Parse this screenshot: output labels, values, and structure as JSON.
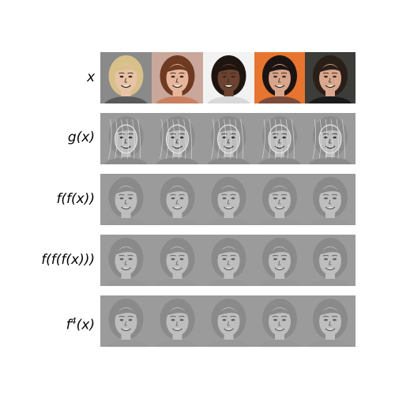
{
  "figure": {
    "rows": [
      {
        "id": "x",
        "label": "x",
        "style": "color"
      },
      {
        "id": "g",
        "label": "g(x)",
        "style": "edge"
      },
      {
        "id": "ff",
        "label": "f(f(x))",
        "style": "gray"
      },
      {
        "id": "fff",
        "label": "f(f(f(x)))",
        "style": "gray"
      },
      {
        "id": "f4",
        "label": "f",
        "sup": "4",
        "suffix": "(x)",
        "style": "gray"
      }
    ],
    "faces": [
      {
        "name": "face-blonde-short-hair",
        "bg": "#8a8a8a",
        "skin": "#e9c3a6",
        "hair": "#d8c08a",
        "cloth": "#5a5a5a"
      },
      {
        "name": "face-brown-bangs",
        "bg": "#c9a79a",
        "skin": "#e6b59a",
        "hair": "#6e3a22",
        "cloth": "#c98060"
      },
      {
        "name": "face-curly-dark-hair",
        "bg": "#f2f2f2",
        "skin": "#6b4330",
        "hair": "#1e1410",
        "cloth": "#d9d9d9"
      },
      {
        "name": "face-dark-wavy-hair",
        "bg": "#e7742f",
        "skin": "#d9a58a",
        "hair": "#1c1412",
        "cloth": "#7a4b3a"
      },
      {
        "name": "face-long-dark-hair",
        "bg": "#3c3c38",
        "skin": "#d9a88e",
        "hair": "#2a1e18",
        "cloth": "#1a1a1a"
      }
    ]
  }
}
